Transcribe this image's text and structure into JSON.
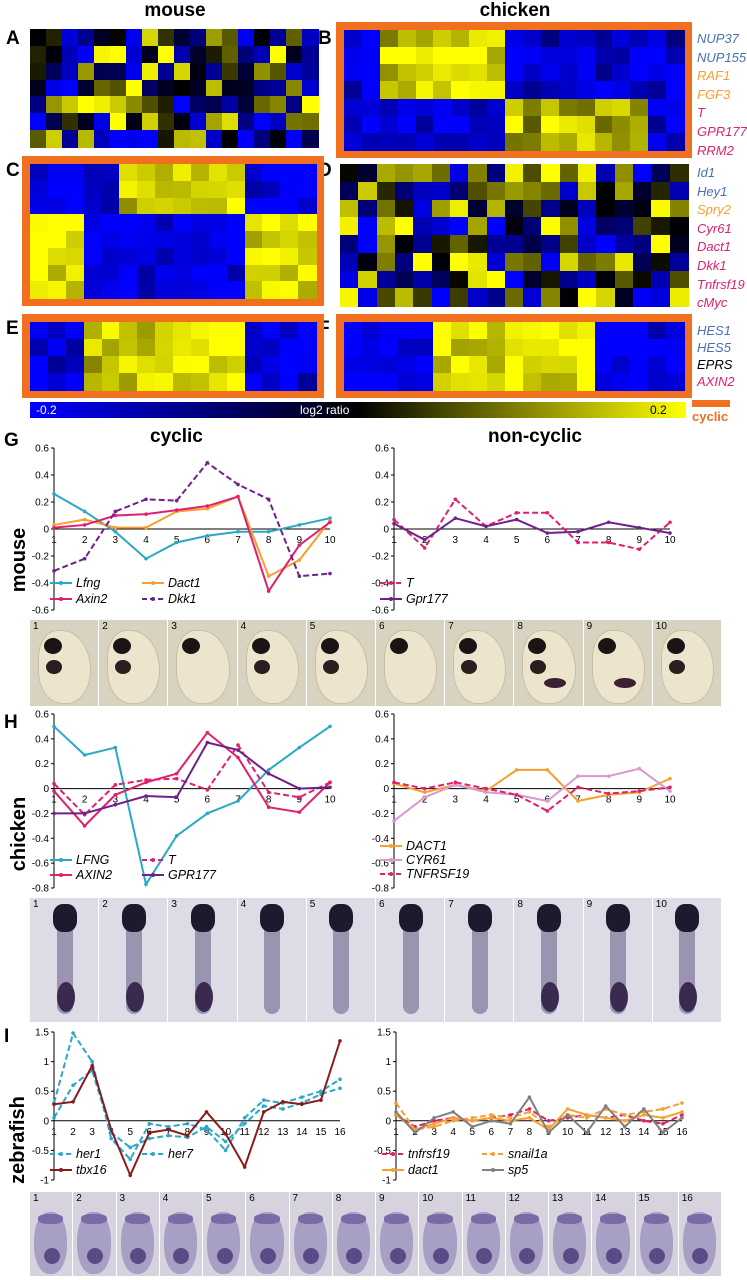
{
  "headers": {
    "mouse": "mouse",
    "chicken": "chicken"
  },
  "panels": {
    "A": "A",
    "B": "B",
    "C": "C",
    "D": "D",
    "E": "E",
    "F": "F",
    "G": "G",
    "H": "H",
    "I": "I"
  },
  "gene_groups": [
    {
      "genes": [
        {
          "name": "NUP37",
          "color": "#4a6fb0"
        },
        {
          "name": "NUP155",
          "color": "#4a6fb0"
        },
        {
          "name": "RAF1",
          "color": "#f5a030"
        },
        {
          "name": "FGF3",
          "color": "#f5a030"
        },
        {
          "name": "T",
          "color": "#e0206e"
        },
        {
          "name": "GPR177",
          "color": "#e0206e"
        },
        {
          "name": "RRM2",
          "color": "#e0206e"
        }
      ]
    },
    {
      "genes": [
        {
          "name": "Id1",
          "color": "#4a6fb0"
        },
        {
          "name": "Hey1",
          "color": "#4a6fb0"
        },
        {
          "name": "Spry2",
          "color": "#f5a030"
        },
        {
          "name": "Cyr61",
          "color": "#e0206e"
        },
        {
          "name": "Dact1",
          "color": "#e0206e"
        },
        {
          "name": "Dkk1",
          "color": "#e0206e"
        },
        {
          "name": "Tnfrsf19",
          "color": "#e0206e"
        },
        {
          "name": "cMyc",
          "color": "#e0206e"
        }
      ]
    },
    {
      "genes": [
        {
          "name": "HES1",
          "color": "#4a6fb0"
        },
        {
          "name": "HES5",
          "color": "#4a6fb0"
        },
        {
          "name": "EPRS",
          "color": "#000000"
        },
        {
          "name": "AXIN2",
          "color": "#e0206e"
        }
      ]
    }
  ],
  "colorbar": {
    "min": "-0.2",
    "label": "log2 ratio",
    "max": "0.2",
    "cyclic_label": "cyclic",
    "cyclic_color": "#f07020"
  },
  "row_labels": {
    "mouse": "mouse",
    "chicken": "chicken",
    "zebrafish": "zebrafish"
  },
  "column_titles": {
    "cyclic": "cyclic",
    "noncyclic": "non-cyclic"
  },
  "colors": {
    "blue": "#0000ff",
    "yellow": "#ffff00",
    "cyan": "#2aa8c8",
    "orange": "#f5a030",
    "magenta": "#e0206e",
    "purple": "#70208a",
    "pink": "#d898d0",
    "grey": "#808080",
    "darkred": "#8b1a1a",
    "frame": "#f07020"
  },
  "chart_data": [
    {
      "id": "G-cyclic",
      "type": "line",
      "x": [
        1,
        2,
        3,
        4,
        5,
        6,
        7,
        8,
        9,
        10
      ],
      "ylim": [
        -0.6,
        0.6
      ],
      "yticks": [
        "0.6",
        "0.4",
        "0.2",
        "0",
        "-0.2",
        "-0.4",
        "-0.6"
      ],
      "series": [
        {
          "name": "Lfng",
          "color": "#2aa8c8",
          "dash": false,
          "values": [
            0.26,
            0.13,
            -0.02,
            -0.22,
            -0.1,
            -0.05,
            -0.02,
            -0.02,
            0.03,
            0.08
          ]
        },
        {
          "name": "Dact1",
          "color": "#f5a030",
          "dash": false,
          "values": [
            0.03,
            0.07,
            0.01,
            0.01,
            0.13,
            0.15,
            0.24,
            -0.35,
            -0.23,
            0.06
          ]
        },
        {
          "name": "Axin2",
          "color": "#e0206e",
          "dash": false,
          "values": [
            0.01,
            0.03,
            0.1,
            0.11,
            0.14,
            0.17,
            0.24,
            -0.46,
            -0.12,
            0.05
          ]
        },
        {
          "name": "Dkk1",
          "color": "#70208a",
          "dash": true,
          "values": [
            -0.31,
            -0.22,
            0.13,
            0.22,
            0.21,
            0.49,
            0.33,
            0.22,
            -0.35,
            -0.33
          ]
        }
      ]
    },
    {
      "id": "G-noncyclic",
      "type": "line",
      "x": [
        1,
        2,
        3,
        4,
        5,
        6,
        7,
        8,
        9,
        10
      ],
      "ylim": [
        -0.6,
        0.6
      ],
      "yticks": [
        "0.6",
        "0.4",
        "0.2",
        "0",
        "-0.2",
        "-0.4",
        "-0.6"
      ],
      "series": [
        {
          "name": "T",
          "color": "#e0206e",
          "dash": true,
          "values": [
            0.07,
            -0.14,
            0.22,
            0.02,
            0.12,
            0.12,
            -0.1,
            -0.1,
            -0.15,
            0.05
          ]
        },
        {
          "name": "Gpr177",
          "color": "#70208a",
          "dash": false,
          "values": [
            0.04,
            -0.08,
            0.08,
            0.02,
            0.07,
            -0.03,
            -0.02,
            0.05,
            0.01,
            -0.03
          ]
        }
      ]
    },
    {
      "id": "H-cyclic",
      "type": "line",
      "x": [
        1,
        2,
        3,
        4,
        5,
        6,
        7,
        8,
        9,
        10
      ],
      "ylim": [
        -0.8,
        0.6
      ],
      "yticks": [
        "0.6",
        "0.4",
        "0.2",
        "0",
        "-0.2",
        "-0.4",
        "-0.6",
        "-0.8"
      ],
      "series": [
        {
          "name": "LFNG",
          "color": "#2aa8c8",
          "dash": false,
          "values": [
            0.5,
            0.27,
            0.33,
            -0.77,
            -0.38,
            -0.2,
            -0.1,
            0.15,
            0.33,
            0.5
          ]
        },
        {
          "name": "T",
          "color": "#e0206e",
          "dash": true,
          "values": [
            0.04,
            -0.21,
            0.03,
            0.07,
            0.08,
            -0.01,
            0.35,
            -0.03,
            -0.07,
            0.05
          ]
        },
        {
          "name": "AXIN2",
          "color": "#e0206e",
          "dash": false,
          "values": [
            -0.02,
            -0.3,
            -0.05,
            0.05,
            0.12,
            0.45,
            0.25,
            -0.15,
            -0.19,
            0.05
          ]
        },
        {
          "name": "GPR177",
          "color": "#70208a",
          "dash": false,
          "values": [
            -0.2,
            -0.2,
            -0.13,
            -0.06,
            -0.07,
            0.37,
            0.31,
            0.12,
            0.0,
            0.01
          ]
        }
      ]
    },
    {
      "id": "H-noncyclic",
      "type": "line",
      "x": [
        1,
        2,
        3,
        4,
        5,
        6,
        7,
        8,
        9,
        10
      ],
      "ylim": [
        -0.8,
        0.6
      ],
      "yticks": [
        "0.6",
        "0.4",
        "0.2",
        "0",
        "-0.2",
        "-0.4",
        "-0.6",
        "-0.8"
      ],
      "series": [
        {
          "name": "DACT1",
          "color": "#f5a030",
          "dash": false,
          "values": [
            0.04,
            -0.03,
            0.03,
            -0.02,
            0.15,
            0.15,
            -0.1,
            -0.05,
            -0.03,
            0.08
          ]
        },
        {
          "name": "CYR61",
          "color": "#d898d0",
          "dash": false,
          "values": [
            -0.26,
            -0.07,
            0.03,
            -0.03,
            -0.05,
            -0.1,
            0.1,
            0.1,
            0.16,
            -0.02
          ]
        },
        {
          "name": "TNFRSF19",
          "color": "#e0206e",
          "dash": true,
          "values": [
            0.05,
            0.0,
            0.05,
            0.0,
            -0.05,
            -0.18,
            0.01,
            -0.04,
            -0.02,
            0.01
          ]
        }
      ]
    },
    {
      "id": "I-cyclic",
      "type": "line",
      "x": [
        1,
        2,
        3,
        4,
        5,
        6,
        7,
        8,
        9,
        10,
        11,
        12,
        13,
        14,
        15,
        16
      ],
      "ylim": [
        -1,
        1.5
      ],
      "yticks": [
        "1.5",
        "1",
        "0.5",
        "0",
        "-0.5",
        "-1"
      ],
      "series": [
        {
          "name": "her1",
          "color": "#2aa8c8",
          "dash": true,
          "values": [
            0.05,
            0.6,
            0.85,
            -0.2,
            -0.45,
            -0.3,
            -0.25,
            -0.28,
            -0.1,
            -0.35,
            -0.05,
            0.25,
            0.2,
            0.3,
            0.45,
            0.55
          ]
        },
        {
          "name": "her7",
          "color": "#2aa8c8",
          "dash": true,
          "values": [
            0.3,
            1.48,
            1.0,
            -0.3,
            -0.65,
            -0.05,
            -0.1,
            -0.05,
            -0.15,
            -0.5,
            0.05,
            0.35,
            0.3,
            0.4,
            0.5,
            0.7
          ]
        },
        {
          "name": "tbx16",
          "color": "#8b1a1a",
          "dash": false,
          "values": [
            0.28,
            0.32,
            0.93,
            -0.15,
            -0.92,
            -0.2,
            -0.15,
            -0.25,
            0.15,
            -0.22,
            -0.78,
            0.15,
            0.32,
            0.28,
            0.35,
            1.35
          ]
        }
      ]
    },
    {
      "id": "I-noncyclic",
      "type": "line",
      "x": [
        1,
        2,
        3,
        4,
        5,
        6,
        7,
        8,
        9,
        10,
        11,
        12,
        13,
        14,
        15,
        16
      ],
      "ylim": [
        -1,
        1.5
      ],
      "yticks": [
        "1.5",
        "1",
        "0.5",
        "0",
        "-0.5",
        "-1"
      ],
      "series": [
        {
          "name": "tnfrsf19",
          "color": "#e0206e",
          "dash": true,
          "values": [
            0.1,
            -0.1,
            0.0,
            0.05,
            0.0,
            0.05,
            0.1,
            0.2,
            0.0,
            0.05,
            0.1,
            0.05,
            0.1,
            0.0,
            -0.05,
            0.1
          ]
        },
        {
          "name": "snail1a",
          "color": "#f5a030",
          "dash": true,
          "values": [
            0.3,
            -0.15,
            -0.1,
            0.0,
            0.05,
            0.1,
            0.05,
            0.15,
            -0.1,
            0.1,
            0.05,
            0.2,
            0.1,
            0.15,
            0.2,
            0.3
          ]
        },
        {
          "name": "dact1",
          "color": "#f5a030",
          "dash": false,
          "values": [
            0.1,
            -0.15,
            -0.05,
            0.05,
            0.0,
            0.05,
            0.0,
            0.05,
            -0.15,
            0.2,
            0.1,
            0.05,
            0.0,
            0.1,
            0.05,
            0.15
          ]
        },
        {
          "name": "sp5",
          "color": "#808080",
          "dash": false,
          "values": [
            0.15,
            -0.2,
            0.05,
            0.15,
            -0.1,
            0.0,
            -0.05,
            0.4,
            -0.2,
            0.1,
            -0.2,
            0.25,
            -0.1,
            0.2,
            -0.2,
            0.05
          ]
        }
      ]
    }
  ],
  "photos": {
    "mouse": [
      "1",
      "2",
      "3",
      "4",
      "5",
      "6",
      "7",
      "8",
      "9",
      "10"
    ],
    "chicken": [
      "1",
      "2",
      "3",
      "4",
      "5",
      "6",
      "7",
      "8",
      "9",
      "10"
    ],
    "zebrafish": [
      "1",
      "2",
      "3",
      "4",
      "5",
      "6",
      "7",
      "8",
      "9",
      "10",
      "11",
      "12",
      "13",
      "14",
      "15",
      "16"
    ]
  }
}
